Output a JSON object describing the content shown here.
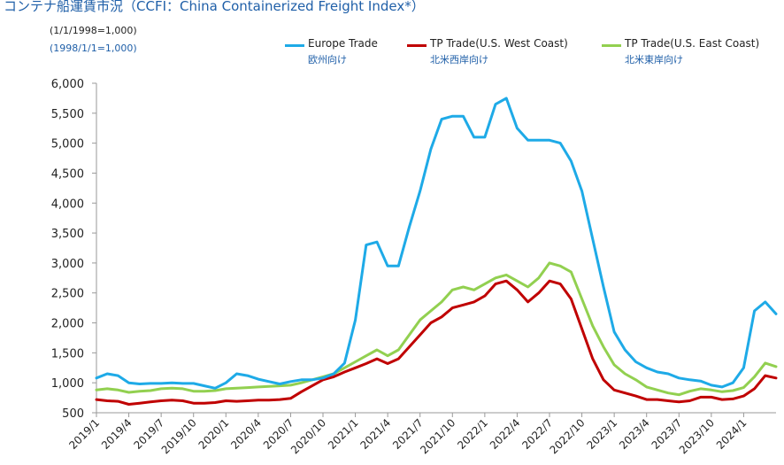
{
  "title": "コンテナ船運賃市況（CCFI：China Containerized Freight Index*）",
  "notes": [
    "(1/1/1998=1,000)",
    "(1998/1/1=1,000)"
  ],
  "chart_data": {
    "type": "line",
    "title": "コンテナ船運賃市況（CCFI：China Containerized Freight Index*）",
    "ylim": [
      500,
      6000
    ],
    "yticks": [
      500,
      1000,
      1500,
      2000,
      2500,
      3000,
      3500,
      4000,
      4500,
      5000,
      5500,
      6000
    ],
    "ytick_labels": [
      "500",
      "1,000",
      "1,500",
      "2,000",
      "2,500",
      "3,000",
      "3,500",
      "4,000",
      "4,500",
      "5,000",
      "5,500",
      "6,000"
    ],
    "xlim": [
      "2019-01",
      "2024-04"
    ],
    "x_ticks": [
      "2019/1",
      "2019/4",
      "2019/7",
      "2019/10",
      "2020/1",
      "2020/4",
      "2020/7",
      "2020/10",
      "2021/1",
      "2021/4",
      "2021/7",
      "2021/10",
      "2022/1",
      "2022/4",
      "2022/7",
      "2022/10",
      "2023/1",
      "2023/4",
      "2023/7",
      "2023/10",
      "2024/1"
    ],
    "grid": false,
    "legend_position": "top",
    "series": [
      {
        "name": "Europe Trade",
        "name_ja": "欧州向け",
        "color": "#1eaae7",
        "points": [
          [
            "2019-01",
            1080
          ],
          [
            "2019-02",
            1150
          ],
          [
            "2019-03",
            1120
          ],
          [
            "2019-04",
            1000
          ],
          [
            "2019-05",
            980
          ],
          [
            "2019-06",
            990
          ],
          [
            "2019-07",
            990
          ],
          [
            "2019-08",
            1000
          ],
          [
            "2019-09",
            990
          ],
          [
            "2019-10",
            990
          ],
          [
            "2019-11",
            950
          ],
          [
            "2019-12",
            910
          ],
          [
            "2020-01",
            1000
          ],
          [
            "2020-02",
            1150
          ],
          [
            "2020-03",
            1120
          ],
          [
            "2020-04",
            1060
          ],
          [
            "2020-05",
            1020
          ],
          [
            "2020-06",
            980
          ],
          [
            "2020-07",
            1020
          ],
          [
            "2020-08",
            1050
          ],
          [
            "2020-09",
            1050
          ],
          [
            "2020-10",
            1080
          ],
          [
            "2020-11",
            1150
          ],
          [
            "2020-12",
            1330
          ],
          [
            "2021-01",
            2050
          ],
          [
            "2021-02",
            3300
          ],
          [
            "2021-03",
            3350
          ],
          [
            "2021-04",
            2950
          ],
          [
            "2021-05",
            2950
          ],
          [
            "2021-06",
            3600
          ],
          [
            "2021-07",
            4200
          ],
          [
            "2021-08",
            4900
          ],
          [
            "2021-09",
            5400
          ],
          [
            "2021-10",
            5450
          ],
          [
            "2021-11",
            5450
          ],
          [
            "2021-12",
            5100
          ],
          [
            "2022-01",
            5100
          ],
          [
            "2022-02",
            5650
          ],
          [
            "2022-03",
            5750
          ],
          [
            "2022-04",
            5250
          ],
          [
            "2022-05",
            5050
          ],
          [
            "2022-06",
            5050
          ],
          [
            "2022-07",
            5050
          ],
          [
            "2022-08",
            5000
          ],
          [
            "2022-09",
            4700
          ],
          [
            "2022-10",
            4200
          ],
          [
            "2022-11",
            3400
          ],
          [
            "2022-12",
            2600
          ],
          [
            "2023-01",
            1850
          ],
          [
            "2023-02",
            1550
          ],
          [
            "2023-03",
            1350
          ],
          [
            "2023-04",
            1250
          ],
          [
            "2023-05",
            1180
          ],
          [
            "2023-06",
            1150
          ],
          [
            "2023-07",
            1080
          ],
          [
            "2023-08",
            1050
          ],
          [
            "2023-09",
            1030
          ],
          [
            "2023-10",
            960
          ],
          [
            "2023-11",
            930
          ],
          [
            "2023-12",
            1000
          ],
          [
            "2024-01",
            1250
          ],
          [
            "2024-02",
            2200
          ],
          [
            "2024-03",
            2350
          ],
          [
            "2024-04",
            2150
          ]
        ]
      },
      {
        "name": "TP Trade(U.S. West Coast)",
        "name_ja": "北米西岸向け",
        "color": "#c00000",
        "points": [
          [
            "2019-01",
            720
          ],
          [
            "2019-02",
            700
          ],
          [
            "2019-03",
            690
          ],
          [
            "2019-04",
            640
          ],
          [
            "2019-05",
            660
          ],
          [
            "2019-06",
            680
          ],
          [
            "2019-07",
            700
          ],
          [
            "2019-08",
            710
          ],
          [
            "2019-09",
            700
          ],
          [
            "2019-10",
            660
          ],
          [
            "2019-11",
            660
          ],
          [
            "2019-12",
            670
          ],
          [
            "2020-01",
            700
          ],
          [
            "2020-02",
            690
          ],
          [
            "2020-03",
            700
          ],
          [
            "2020-04",
            710
          ],
          [
            "2020-05",
            710
          ],
          [
            "2020-06",
            720
          ],
          [
            "2020-07",
            740
          ],
          [
            "2020-08",
            850
          ],
          [
            "2020-09",
            950
          ],
          [
            "2020-10",
            1050
          ],
          [
            "2020-11",
            1100
          ],
          [
            "2020-12",
            1180
          ],
          [
            "2021-01",
            1250
          ],
          [
            "2021-02",
            1320
          ],
          [
            "2021-03",
            1400
          ],
          [
            "2021-04",
            1320
          ],
          [
            "2021-05",
            1400
          ],
          [
            "2021-06",
            1600
          ],
          [
            "2021-07",
            1800
          ],
          [
            "2021-08",
            2000
          ],
          [
            "2021-09",
            2100
          ],
          [
            "2021-10",
            2250
          ],
          [
            "2021-11",
            2300
          ],
          [
            "2021-12",
            2350
          ],
          [
            "2022-01",
            2450
          ],
          [
            "2022-02",
            2650
          ],
          [
            "2022-03",
            2700
          ],
          [
            "2022-04",
            2550
          ],
          [
            "2022-05",
            2350
          ],
          [
            "2022-06",
            2500
          ],
          [
            "2022-07",
            2700
          ],
          [
            "2022-08",
            2650
          ],
          [
            "2022-09",
            2400
          ],
          [
            "2022-10",
            1900
          ],
          [
            "2022-11",
            1400
          ],
          [
            "2022-12",
            1050
          ],
          [
            "2023-01",
            880
          ],
          [
            "2023-02",
            830
          ],
          [
            "2023-03",
            780
          ],
          [
            "2023-04",
            720
          ],
          [
            "2023-05",
            720
          ],
          [
            "2023-06",
            700
          ],
          [
            "2023-07",
            680
          ],
          [
            "2023-08",
            700
          ],
          [
            "2023-09",
            760
          ],
          [
            "2023-10",
            760
          ],
          [
            "2023-11",
            720
          ],
          [
            "2023-12",
            730
          ],
          [
            "2024-01",
            780
          ],
          [
            "2024-02",
            900
          ],
          [
            "2024-03",
            1120
          ],
          [
            "2024-04",
            1080
          ]
        ]
      },
      {
        "name": "TP Trade(U.S. East Coast)",
        "name_ja": "北米東岸向け",
        "color": "#92d050",
        "points": [
          [
            "2019-01",
            880
          ],
          [
            "2019-02",
            900
          ],
          [
            "2019-03",
            880
          ],
          [
            "2019-04",
            840
          ],
          [
            "2019-05",
            860
          ],
          [
            "2019-06",
            870
          ],
          [
            "2019-07",
            900
          ],
          [
            "2019-08",
            910
          ],
          [
            "2019-09",
            900
          ],
          [
            "2019-10",
            860
          ],
          [
            "2019-11",
            860
          ],
          [
            "2019-12",
            870
          ],
          [
            "2020-01",
            900
          ],
          [
            "2020-02",
            910
          ],
          [
            "2020-03",
            920
          ],
          [
            "2020-04",
            930
          ],
          [
            "2020-05",
            940
          ],
          [
            "2020-06",
            950
          ],
          [
            "2020-07",
            960
          ],
          [
            "2020-08",
            1000
          ],
          [
            "2020-09",
            1050
          ],
          [
            "2020-10",
            1100
          ],
          [
            "2020-11",
            1150
          ],
          [
            "2020-12",
            1250
          ],
          [
            "2021-01",
            1350
          ],
          [
            "2021-02",
            1450
          ],
          [
            "2021-03",
            1550
          ],
          [
            "2021-04",
            1450
          ],
          [
            "2021-05",
            1550
          ],
          [
            "2021-06",
            1800
          ],
          [
            "2021-07",
            2050
          ],
          [
            "2021-08",
            2200
          ],
          [
            "2021-09",
            2350
          ],
          [
            "2021-10",
            2550
          ],
          [
            "2021-11",
            2600
          ],
          [
            "2021-12",
            2550
          ],
          [
            "2022-01",
            2650
          ],
          [
            "2022-02",
            2750
          ],
          [
            "2022-03",
            2800
          ],
          [
            "2022-04",
            2700
          ],
          [
            "2022-05",
            2600
          ],
          [
            "2022-06",
            2750
          ],
          [
            "2022-07",
            3000
          ],
          [
            "2022-08",
            2950
          ],
          [
            "2022-09",
            2850
          ],
          [
            "2022-10",
            2400
          ],
          [
            "2022-11",
            1950
          ],
          [
            "2022-12",
            1600
          ],
          [
            "2023-01",
            1300
          ],
          [
            "2023-02",
            1150
          ],
          [
            "2023-03",
            1050
          ],
          [
            "2023-04",
            930
          ],
          [
            "2023-05",
            880
          ],
          [
            "2023-06",
            830
          ],
          [
            "2023-07",
            800
          ],
          [
            "2023-08",
            860
          ],
          [
            "2023-09",
            900
          ],
          [
            "2023-10",
            880
          ],
          [
            "2023-11",
            850
          ],
          [
            "2023-12",
            870
          ],
          [
            "2024-01",
            920
          ],
          [
            "2024-02",
            1100
          ],
          [
            "2024-03",
            1330
          ],
          [
            "2024-04",
            1270
          ]
        ]
      }
    ]
  }
}
